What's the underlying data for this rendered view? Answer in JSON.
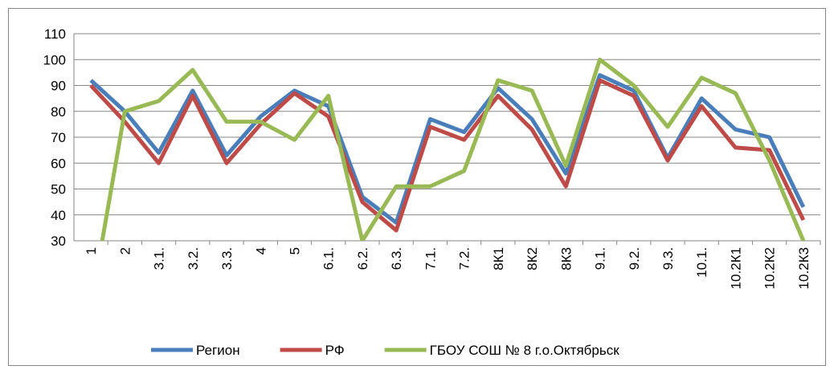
{
  "chart_data": {
    "type": "line",
    "categories": [
      "1",
      "2",
      "3.1.",
      "3.2.",
      "3.3.",
      "4",
      "5",
      "6.1.",
      "6.2.",
      "6.3.",
      "7.1.",
      "7.2.",
      "8К1",
      "8К2",
      "8К3",
      "9.1.",
      "9.2.",
      "9.3.",
      "10.1.",
      "10.2К1",
      "10.2К2",
      "10.2К3"
    ],
    "series": [
      {
        "name": "Регион",
        "color": "#4a7ebb",
        "values": [
          92,
          80,
          64,
          88,
          63,
          78,
          88,
          82,
          47,
          37,
          77,
          72,
          89,
          77,
          56,
          94,
          88,
          62,
          85,
          73,
          70,
          43
        ]
      },
      {
        "name": "РФ",
        "color": "#be4b48",
        "values": [
          90,
          76,
          60,
          86,
          60,
          75,
          87,
          78,
          45,
          34,
          74,
          69,
          86,
          73,
          51,
          92,
          86,
          61,
          82,
          66,
          65,
          38
        ]
      },
      {
        "name": "ГБОУ СОШ № 8 г.о.Октябрьск",
        "color": "#98b954",
        "values": [
          5,
          80,
          84,
          96,
          76,
          76,
          69,
          86,
          30,
          51,
          51,
          57,
          92,
          88,
          59,
          100,
          90,
          74,
          93,
          87,
          61,
          30
        ]
      }
    ],
    "ylim": [
      30,
      110
    ],
    "yticks": [
      30,
      40,
      50,
      60,
      70,
      80,
      90,
      100,
      110
    ],
    "grid": true,
    "legend": "bottom"
  }
}
